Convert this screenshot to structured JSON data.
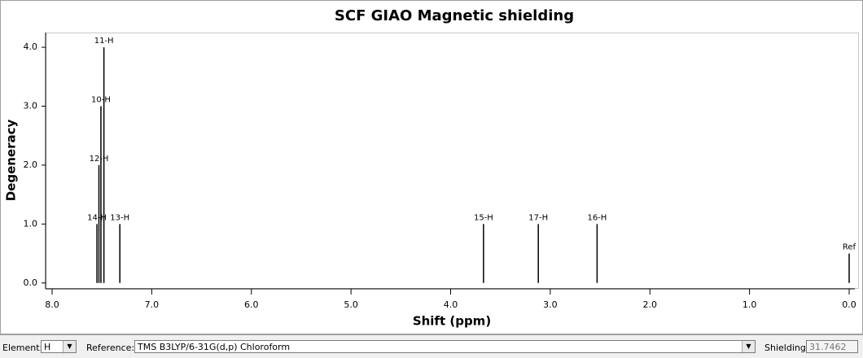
{
  "chart_data": {
    "type": "stick",
    "title": "SCF GIAO Magnetic shielding",
    "x_label": "Shift (ppm)",
    "y_label": "Degeneracy",
    "x": [
      7.48,
      7.51,
      7.53,
      7.55,
      7.32,
      3.67,
      3.12,
      2.53,
      0.0
    ],
    "values": [
      4,
      3,
      2,
      1,
      1,
      1,
      1,
      1,
      0.5
    ],
    "point_labels": [
      "11-H",
      "10-H",
      "12-H",
      "14-H",
      "13-H",
      "15-H",
      "17-H",
      "16-H",
      "Ref"
    ],
    "color": "#000000",
    "xlim": [
      8,
      0
    ],
    "ylim": [
      -0.1,
      4.25
    ],
    "xticks": [
      {
        "value": 8,
        "label": "8.0"
      },
      {
        "value": 7,
        "label": "7.0"
      },
      {
        "value": 6,
        "label": "6.0"
      },
      {
        "value": 5,
        "label": "5.0"
      },
      {
        "value": 4,
        "label": "4.0"
      },
      {
        "value": 3,
        "label": "3.0"
      },
      {
        "value": 2,
        "label": "2.0"
      },
      {
        "value": 1,
        "label": "1.0"
      },
      {
        "value": 0,
        "label": "0.0"
      }
    ],
    "yticks": [
      {
        "value": 0,
        "label": "0.0"
      },
      {
        "value": 1,
        "label": "1.0"
      },
      {
        "value": 2,
        "label": "2.0"
      },
      {
        "value": 3,
        "label": "3.0"
      },
      {
        "value": 4,
        "label": "4.0"
      }
    ]
  },
  "controls": {
    "element_label": "Element:",
    "element": "H",
    "reference_label": "Reference:",
    "reference": "TMS B3LYP/6-31G(d,p) Chloroform",
    "shielding_label": "Shielding:",
    "shielding": "31.7462"
  }
}
